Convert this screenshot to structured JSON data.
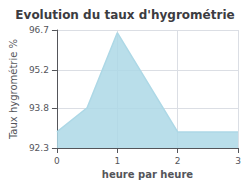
{
  "chart_data": {
    "type": "area",
    "title": "Evolution du taux d'hygrométrie",
    "xlabel": "heure par heure",
    "ylabel": "Taux hygrométrie %",
    "x": [
      0,
      0.5,
      1,
      2,
      3
    ],
    "values": [
      92.9,
      93.8,
      96.6,
      92.9,
      92.9
    ],
    "color": "#add8e6",
    "xlim": [
      0,
      3
    ],
    "xticks": [
      0,
      1,
      2,
      3
    ],
    "ylim": [
      92.3,
      96.7
    ],
    "yticks": [
      92.3,
      93.8,
      95.2,
      96.7
    ],
    "grid": true
  }
}
